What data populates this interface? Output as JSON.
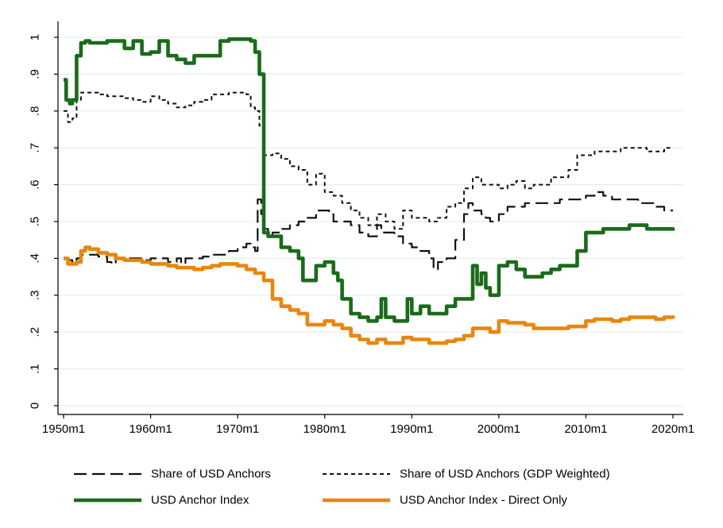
{
  "chart_data": {
    "type": "line",
    "title": "",
    "xlabel": "",
    "ylabel": "",
    "xlim": [
      1950,
      2020
    ],
    "ylim": [
      0,
      1
    ],
    "grid": true,
    "legend_position": "bottom",
    "x_ticks": [
      {
        "value": 1950,
        "label": "1950m1"
      },
      {
        "value": 1960,
        "label": "1960m1"
      },
      {
        "value": 1970,
        "label": "1970m1"
      },
      {
        "value": 1980,
        "label": "1980m1"
      },
      {
        "value": 1990,
        "label": "1990m1"
      },
      {
        "value": 2000,
        "label": "2000m1"
      },
      {
        "value": 2010,
        "label": "2010m1"
      },
      {
        "value": 2020,
        "label": "2020m1"
      }
    ],
    "y_ticks": [
      {
        "value": 0,
        "label": "0"
      },
      {
        "value": 0.1,
        "label": ".1"
      },
      {
        "value": 0.2,
        "label": ".2"
      },
      {
        "value": 0.3,
        "label": ".3"
      },
      {
        "value": 0.4,
        "label": ".4"
      },
      {
        "value": 0.5,
        "label": ".5"
      },
      {
        "value": 0.6,
        "label": ".6"
      },
      {
        "value": 0.7,
        "label": ".7"
      },
      {
        "value": 0.8,
        "label": ".8"
      },
      {
        "value": 0.9,
        "label": ".9"
      },
      {
        "value": 1,
        "label": "1"
      }
    ],
    "series": [
      {
        "name": "Share of USD Anchors",
        "color": "#111111",
        "style": "dashed",
        "x": [
          1950.0,
          1950.5,
          1951.0,
          1951.5,
          1952.0,
          1953.0,
          1954.0,
          1955.0,
          1955.5,
          1956.0,
          1957.0,
          1958.0,
          1959.0,
          1960.0,
          1961.0,
          1962.0,
          1963.0,
          1963.5,
          1964.0,
          1965.0,
          1966.0,
          1967.0,
          1968.0,
          1969.0,
          1970.0,
          1970.5,
          1971.0,
          1971.5,
          1972.0,
          1972.3,
          1972.7,
          1973.0,
          1973.5,
          1974.0,
          1974.5,
          1975.0,
          1976.0,
          1977.0,
          1978.0,
          1979.0,
          1980.0,
          1980.5,
          1981.0,
          1982.0,
          1983.0,
          1984.0,
          1985.0,
          1986.0,
          1986.5,
          1987.0,
          1988.0,
          1989.0,
          1990.0,
          1991.0,
          1992.0,
          1992.5,
          1993.0,
          1994.0,
          1995.0,
          1996.0,
          1996.5,
          1997.0,
          1998.0,
          1998.5,
          1999.0,
          2000.0,
          2001.0,
          2002.0,
          2003.0,
          2004.0,
          2005.0,
          2006.0,
          2007.0,
          2008.0,
          2009.0,
          2010.0,
          2011.0,
          2012.0,
          2013.0,
          2014.0,
          2015.0,
          2016.0,
          2017.0,
          2018.0,
          2019.0,
          2020.0
        ],
        "y": [
          0.4,
          0.395,
          0.39,
          0.4,
          0.41,
          0.41,
          0.405,
          0.39,
          0.385,
          0.4,
          0.4,
          0.4,
          0.395,
          0.4,
          0.4,
          0.39,
          0.4,
          0.385,
          0.4,
          0.4,
          0.405,
          0.41,
          0.41,
          0.42,
          0.43,
          0.43,
          0.44,
          0.43,
          0.42,
          0.56,
          0.52,
          0.48,
          0.46,
          0.47,
          0.47,
          0.48,
          0.49,
          0.5,
          0.51,
          0.53,
          0.53,
          0.52,
          0.5,
          0.5,
          0.49,
          0.47,
          0.46,
          0.49,
          0.47,
          0.47,
          0.46,
          0.44,
          0.43,
          0.42,
          0.4,
          0.37,
          0.39,
          0.4,
          0.45,
          0.52,
          0.55,
          0.53,
          0.52,
          0.51,
          0.5,
          0.52,
          0.54,
          0.54,
          0.55,
          0.55,
          0.55,
          0.55,
          0.56,
          0.56,
          0.56,
          0.57,
          0.58,
          0.57,
          0.56,
          0.56,
          0.56,
          0.55,
          0.55,
          0.54,
          0.53,
          0.53
        ]
      },
      {
        "name": "Share of USD Anchors (GDP Weighted)",
        "color": "#111111",
        "style": "dotted",
        "x": [
          1950.0,
          1950.5,
          1951.0,
          1951.5,
          1952.0,
          1953.0,
          1954.0,
          1955.0,
          1956.0,
          1957.0,
          1958.0,
          1959.0,
          1960.0,
          1961.0,
          1962.0,
          1963.0,
          1964.0,
          1965.0,
          1966.0,
          1967.0,
          1968.0,
          1969.0,
          1970.0,
          1971.0,
          1971.5,
          1972.0,
          1972.5,
          1973.0,
          1974.0,
          1975.0,
          1976.0,
          1977.0,
          1978.0,
          1979.0,
          1980.0,
          1981.0,
          1982.0,
          1983.0,
          1984.0,
          1985.0,
          1986.0,
          1987.0,
          1988.0,
          1989.0,
          1990.0,
          1991.0,
          1992.0,
          1993.0,
          1994.0,
          1995.0,
          1996.0,
          1997.0,
          1998.0,
          1999.0,
          2000.0,
          2001.0,
          2002.0,
          2003.0,
          2004.0,
          2005.0,
          2006.0,
          2007.0,
          2008.0,
          2009.0,
          2010.0,
          2011.0,
          2012.0,
          2013.0,
          2014.0,
          2015.0,
          2016.0,
          2017.0,
          2018.0,
          2019.0,
          2020.0
        ],
        "y": [
          0.8,
          0.77,
          0.78,
          0.83,
          0.85,
          0.85,
          0.845,
          0.84,
          0.84,
          0.835,
          0.83,
          0.825,
          0.84,
          0.83,
          0.82,
          0.81,
          0.815,
          0.825,
          0.83,
          0.845,
          0.845,
          0.85,
          0.85,
          0.845,
          0.81,
          0.8,
          0.76,
          0.68,
          0.685,
          0.67,
          0.65,
          0.64,
          0.6,
          0.63,
          0.58,
          0.57,
          0.55,
          0.53,
          0.51,
          0.49,
          0.52,
          0.5,
          0.48,
          0.53,
          0.51,
          0.51,
          0.5,
          0.51,
          0.54,
          0.55,
          0.59,
          0.62,
          0.6,
          0.6,
          0.59,
          0.6,
          0.61,
          0.59,
          0.6,
          0.6,
          0.62,
          0.62,
          0.64,
          0.68,
          0.68,
          0.69,
          0.69,
          0.69,
          0.7,
          0.7,
          0.7,
          0.69,
          0.69,
          0.7,
          0.7
        ]
      },
      {
        "name": "USD Anchor Index",
        "color": "#1a6b1a",
        "style": "solid",
        "x": [
          1950.0,
          1950.3,
          1950.7,
          1951.0,
          1951.5,
          1952.0,
          1952.5,
          1953.0,
          1954.0,
          1955.0,
          1956.0,
          1957.0,
          1958.0,
          1959.0,
          1960.0,
          1961.0,
          1962.0,
          1963.0,
          1964.0,
          1965.0,
          1966.0,
          1967.0,
          1968.0,
          1969.0,
          1970.0,
          1971.0,
          1971.5,
          1972.0,
          1972.5,
          1973.0,
          1973.5,
          1974.0,
          1975.0,
          1976.0,
          1977.0,
          1977.5,
          1978.0,
          1979.0,
          1980.0,
          1981.0,
          1981.5,
          1982.0,
          1983.0,
          1984.0,
          1985.0,
          1986.0,
          1986.5,
          1987.0,
          1988.0,
          1989.0,
          1989.5,
          1990.0,
          1991.0,
          1992.0,
          1993.0,
          1994.0,
          1995.0,
          1996.0,
          1997.0,
          1997.5,
          1998.0,
          1998.5,
          1999.0,
          2000.0,
          2001.0,
          2002.0,
          2003.0,
          2004.0,
          2005.0,
          2006.0,
          2007.0,
          2008.0,
          2009.0,
          2010.0,
          2011.0,
          2012.0,
          2013.0,
          2014.0,
          2015.0,
          2016.0,
          2017.0,
          2018.0,
          2019.0,
          2020.0
        ],
        "y": [
          0.885,
          0.83,
          0.82,
          0.83,
          0.95,
          0.985,
          0.99,
          0.985,
          0.985,
          0.99,
          0.99,
          0.97,
          0.99,
          0.955,
          0.96,
          0.99,
          0.95,
          0.94,
          0.93,
          0.95,
          0.95,
          0.95,
          0.99,
          0.995,
          0.995,
          0.995,
          0.99,
          0.96,
          0.9,
          0.47,
          0.46,
          0.46,
          0.43,
          0.42,
          0.4,
          0.34,
          0.34,
          0.38,
          0.39,
          0.36,
          0.34,
          0.29,
          0.25,
          0.24,
          0.23,
          0.24,
          0.29,
          0.24,
          0.23,
          0.23,
          0.29,
          0.25,
          0.27,
          0.25,
          0.25,
          0.27,
          0.29,
          0.29,
          0.38,
          0.33,
          0.36,
          0.32,
          0.3,
          0.38,
          0.39,
          0.37,
          0.35,
          0.35,
          0.36,
          0.37,
          0.38,
          0.38,
          0.42,
          0.47,
          0.47,
          0.48,
          0.48,
          0.48,
          0.49,
          0.49,
          0.48,
          0.48,
          0.48,
          0.475
        ]
      },
      {
        "name": "USD Anchor Index - Direct Only",
        "color": "#e8870d",
        "style": "solid",
        "x": [
          1950.0,
          1950.5,
          1951.0,
          1951.5,
          1952.0,
          1952.5,
          1953.0,
          1954.0,
          1955.0,
          1956.0,
          1957.0,
          1958.0,
          1959.0,
          1960.0,
          1961.0,
          1962.0,
          1963.0,
          1964.0,
          1965.0,
          1966.0,
          1967.0,
          1968.0,
          1969.0,
          1970.0,
          1971.0,
          1972.0,
          1973.0,
          1974.0,
          1975.0,
          1976.0,
          1977.0,
          1978.0,
          1979.0,
          1980.0,
          1981.0,
          1982.0,
          1983.0,
          1984.0,
          1985.0,
          1986.0,
          1987.0,
          1988.0,
          1989.0,
          1990.0,
          1991.0,
          1992.0,
          1993.0,
          1994.0,
          1995.0,
          1996.0,
          1997.0,
          1998.0,
          1999.0,
          2000.0,
          2001.0,
          2002.0,
          2003.0,
          2004.0,
          2005.0,
          2006.0,
          2007.0,
          2008.0,
          2009.0,
          2010.0,
          2011.0,
          2012.0,
          2013.0,
          2014.0,
          2015.0,
          2016.0,
          2017.0,
          2018.0,
          2019.0,
          2020.0
        ],
        "y": [
          0.4,
          0.385,
          0.385,
          0.39,
          0.42,
          0.43,
          0.425,
          0.415,
          0.41,
          0.4,
          0.395,
          0.395,
          0.39,
          0.385,
          0.385,
          0.38,
          0.375,
          0.375,
          0.37,
          0.375,
          0.38,
          0.385,
          0.385,
          0.38,
          0.37,
          0.36,
          0.34,
          0.29,
          0.27,
          0.26,
          0.25,
          0.22,
          0.22,
          0.23,
          0.22,
          0.21,
          0.19,
          0.18,
          0.17,
          0.18,
          0.17,
          0.17,
          0.185,
          0.18,
          0.18,
          0.17,
          0.17,
          0.175,
          0.18,
          0.19,
          0.21,
          0.21,
          0.2,
          0.23,
          0.225,
          0.225,
          0.22,
          0.21,
          0.21,
          0.21,
          0.21,
          0.215,
          0.215,
          0.23,
          0.235,
          0.235,
          0.23,
          0.235,
          0.24,
          0.24,
          0.24,
          0.235,
          0.24,
          0.245
        ]
      }
    ]
  }
}
